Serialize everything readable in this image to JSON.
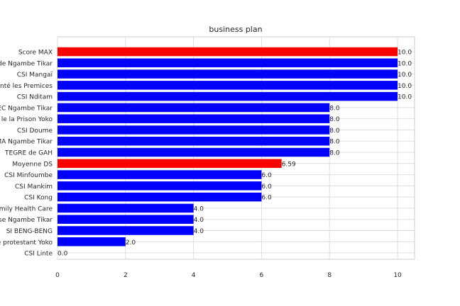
{
  "chart_data": {
    "type": "bar",
    "orientation": "horizontal",
    "title": "business plan",
    "xlabel": "",
    "ylabel": "",
    "xlim": [
      0,
      10.5
    ],
    "xticks": [
      0,
      2,
      4,
      6,
      8,
      10
    ],
    "grid": true,
    "categories": [
      "Score MAX",
      "de Ngambe Tikar",
      "CSI Mangaï",
      "nté les Premices",
      "CSI Nditam",
      "EC Ngambe Tikar",
      "le la Prison Yoko",
      "CSI Doume",
      "MA Ngambe Tikar",
      "TEGRE  de GAH",
      "Moyenne DS",
      "CSI Minfoumbe",
      "CSI Mankim",
      "CSI Kong",
      "mily Health Care",
      "se Ngambe Tikar",
      "SI BENG-BENG",
      "e protestant Yoko",
      "CSI Linte"
    ],
    "values": [
      10.0,
      10.0,
      10.0,
      10.0,
      10.0,
      8.0,
      8.0,
      8.0,
      8.0,
      8.0,
      6.59,
      6.0,
      6.0,
      6.0,
      4.0,
      4.0,
      4.0,
      2.0,
      0.0
    ],
    "value_labels": [
      "10.0",
      "10.0",
      "10.0",
      "10.0",
      "10.0",
      "8.0",
      "8.0",
      "8.0",
      "8.0",
      "8.0",
      "6.59",
      "6.0",
      "6.0",
      "6.0",
      "4.0",
      "4.0",
      "4.0",
      "2.0",
      "0.0"
    ],
    "colors": [
      "#ff0000",
      "#0000ff",
      "#0000ff",
      "#0000ff",
      "#0000ff",
      "#0000ff",
      "#0000ff",
      "#0000ff",
      "#0000ff",
      "#0000ff",
      "#ff0000",
      "#0000ff",
      "#0000ff",
      "#0000ff",
      "#0000ff",
      "#0000ff",
      "#0000ff",
      "#0000ff",
      "#0000ff"
    ]
  }
}
